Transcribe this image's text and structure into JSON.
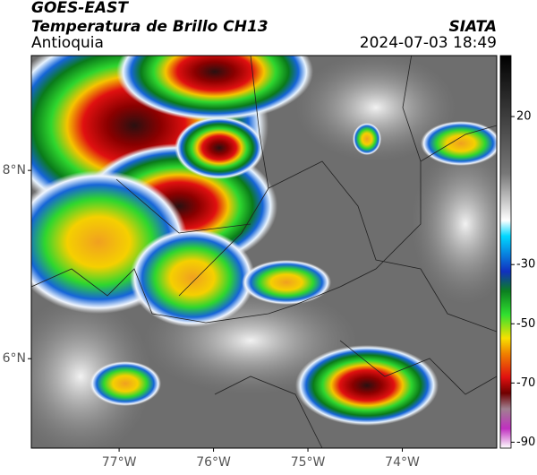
{
  "header": {
    "title": "GOES-EAST",
    "subtitle": "Temperatura de Brillo CH13",
    "region": "Antioquia",
    "source": "SIATA",
    "datetime": "2024-07-03 18:49"
  },
  "map": {
    "xlim": [
      -77.93,
      -73.0
    ],
    "ylim": [
      5.05,
      9.22
    ],
    "xticks": [
      {
        "value": -77,
        "label": "77°W"
      },
      {
        "value": -76,
        "label": "76°W"
      },
      {
        "value": -75,
        "label": "75°W"
      },
      {
        "value": -74,
        "label": "74°W"
      }
    ],
    "yticks": [
      {
        "value": 8,
        "label": "8°N"
      },
      {
        "value": 6,
        "label": "6°N"
      }
    ]
  },
  "colorbar": {
    "lim": [
      -92,
      40.6
    ],
    "ticks": [
      20,
      -30,
      -50,
      -70,
      -90
    ]
  }
}
